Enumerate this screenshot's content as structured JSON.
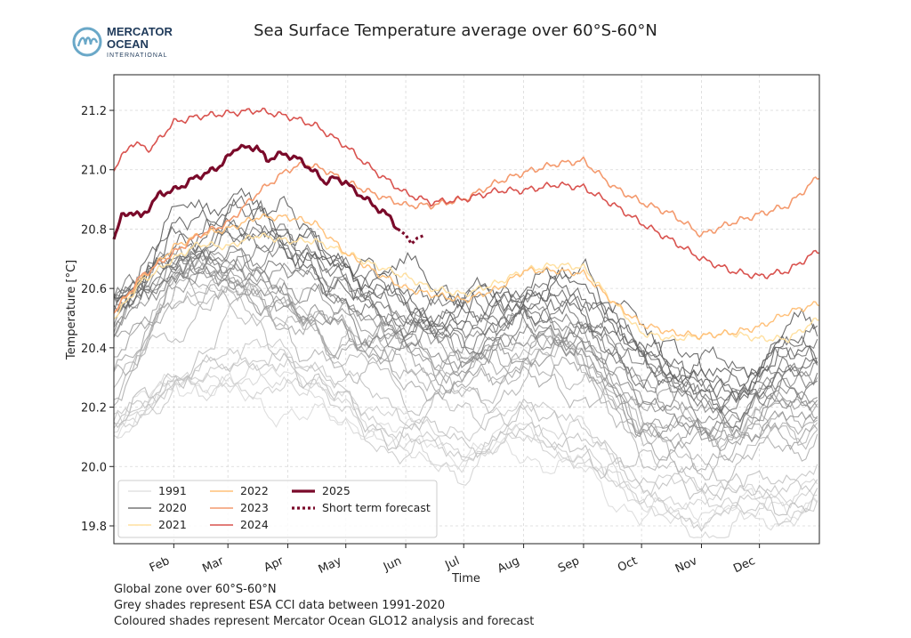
{
  "logo": {
    "line1": "MERCATOR",
    "line2": "OCEAN",
    "line3": "INTERNATIONAL",
    "colors": {
      "blue": "#6aa8c8",
      "navy": "#1f3a5a"
    }
  },
  "footnotes": [
    "Global zone over 60°S-60°N",
    "Grey shades represent ESA CCI data between 1991-2020",
    "Coloured shades represent Mercator Ocean GLO12 analysis and forecast"
  ],
  "chart_data": {
    "type": "line",
    "title": "Sea Surface Temperature average over 60°S-60°N",
    "xlabel": "Time",
    "ylabel": "Temperature [°C]",
    "ylim": [
      19.74,
      21.32
    ],
    "xlim": [
      1,
      366
    ],
    "grid": true,
    "legend_position": "lower-left",
    "x_unit": "day of year",
    "month_ticks": [
      {
        "label": "Feb",
        "day": 32
      },
      {
        "label": "Mar",
        "day": 60
      },
      {
        "label": "Apr",
        "day": 91
      },
      {
        "label": "May",
        "day": 121
      },
      {
        "label": "Jun",
        "day": 152
      },
      {
        "label": "Jul",
        "day": 182
      },
      {
        "label": "Aug",
        "day": 213
      },
      {
        "label": "Sep",
        "day": 244
      },
      {
        "label": "Oct",
        "day": 274
      },
      {
        "label": "Nov",
        "day": 305
      },
      {
        "label": "Dec",
        "day": 335
      }
    ],
    "y_ticks": [
      19.8,
      20.0,
      20.2,
      20.4,
      20.6,
      20.8,
      21.0,
      21.2
    ],
    "grey_climatology": {
      "description_years": "1991-2020",
      "count": 30,
      "color_start": "#dcdcdc",
      "color_end": "#5a5a5a",
      "base_curve": {
        "x": [
          1,
          32,
          60,
          91,
          121,
          152,
          182,
          213,
          244,
          274,
          305,
          335,
          366
        ],
        "y": [
          20.12,
          20.32,
          20.36,
          20.3,
          20.2,
          20.1,
          20.05,
          20.14,
          20.1,
          19.9,
          19.84,
          19.87,
          19.95
        ]
      },
      "start_anomaly": -0.02,
      "end_anomaly": 0.52
    },
    "series": [
      {
        "name": "2021",
        "color": "#ffe0a0",
        "width": 1.4,
        "x": [
          1,
          15,
          32,
          45,
          60,
          75,
          91,
          105,
          121,
          135,
          152,
          165,
          182,
          200,
          213,
          230,
          244,
          260,
          274,
          290,
          305,
          320,
          335,
          350,
          366
        ],
        "y": [
          20.5,
          20.62,
          20.7,
          20.75,
          20.74,
          20.78,
          20.76,
          20.76,
          20.72,
          20.68,
          20.64,
          20.6,
          20.58,
          20.62,
          20.66,
          20.68,
          20.67,
          20.55,
          20.45,
          20.43,
          20.44,
          20.45,
          20.43,
          20.43,
          20.5
        ]
      },
      {
        "name": "2022",
        "color": "#ffc079",
        "width": 1.4,
        "x": [
          1,
          15,
          32,
          45,
          60,
          75,
          91,
          105,
          121,
          135,
          152,
          165,
          182,
          200,
          213,
          230,
          244,
          260,
          274,
          290,
          305,
          320,
          335,
          350,
          366
        ],
        "y": [
          20.52,
          20.63,
          20.74,
          20.78,
          20.8,
          20.84,
          20.84,
          20.82,
          20.72,
          20.66,
          20.6,
          20.58,
          20.56,
          20.6,
          20.66,
          20.66,
          20.65,
          20.55,
          20.48,
          20.45,
          20.44,
          20.45,
          20.47,
          20.52,
          20.55
        ]
      },
      {
        "name": "2023",
        "color": "#f49a6e",
        "width": 1.6,
        "x": [
          1,
          15,
          32,
          45,
          60,
          75,
          91,
          100,
          110,
          121,
          135,
          152,
          165,
          182,
          200,
          213,
          230,
          244,
          260,
          274,
          290,
          305,
          320,
          335,
          350,
          366
        ],
        "y": [
          20.52,
          20.64,
          20.72,
          20.78,
          20.82,
          20.92,
          21.0,
          21.02,
          21.0,
          20.96,
          20.92,
          20.88,
          20.88,
          20.9,
          20.96,
          20.99,
          21.02,
          21.03,
          20.94,
          20.89,
          20.85,
          20.78,
          20.82,
          20.85,
          20.88,
          20.98
        ]
      },
      {
        "name": "2024",
        "color": "#d9534f",
        "width": 1.6,
        "x": [
          1,
          10,
          20,
          32,
          45,
          60,
          75,
          91,
          105,
          121,
          135,
          152,
          165,
          182,
          200,
          213,
          230,
          244,
          260,
          274,
          290,
          305,
          320,
          335,
          350,
          366
        ],
        "y": [
          21.0,
          21.09,
          21.07,
          21.16,
          21.18,
          21.19,
          21.2,
          21.18,
          21.15,
          21.08,
          21.0,
          20.92,
          20.89,
          20.9,
          20.93,
          20.93,
          20.95,
          20.94,
          20.88,
          20.82,
          20.76,
          20.7,
          20.66,
          20.64,
          20.66,
          20.73
        ]
      },
      {
        "name": "2025",
        "color": "#7a0a2a",
        "width": 3.2,
        "x": [
          1,
          5,
          10,
          15,
          20,
          25,
          32,
          40,
          45,
          50,
          55,
          60,
          65,
          70,
          75,
          80,
          85,
          91,
          95,
          100,
          105,
          110,
          115,
          121,
          125,
          130,
          135,
          140,
          145,
          148
        ],
        "y": [
          20.77,
          20.84,
          20.86,
          20.84,
          20.88,
          20.92,
          20.93,
          20.96,
          20.98,
          20.99,
          21.01,
          21.04,
          21.08,
          21.07,
          21.08,
          21.03,
          21.05,
          21.05,
          21.04,
          21.02,
          20.99,
          20.96,
          20.97,
          20.96,
          20.93,
          20.91,
          20.88,
          20.86,
          20.83,
          20.8
        ]
      },
      {
        "name": "Short term forecast",
        "color": "#7a0a2a",
        "width": 3.2,
        "dashed": true,
        "x": [
          148,
          152,
          155,
          158,
          162
        ],
        "y": [
          20.8,
          20.78,
          20.75,
          20.77,
          20.78
        ]
      }
    ],
    "legend": [
      {
        "label": "1991",
        "color": "#dcdcdc",
        "style": "thin"
      },
      {
        "label": "2020",
        "color": "#5a5a5a",
        "style": "thin"
      },
      {
        "label": "2021",
        "color": "#ffe0a0",
        "style": "medium"
      },
      {
        "label": "2022",
        "color": "#ffc079",
        "style": "medium"
      },
      {
        "label": "2023",
        "color": "#f49a6e",
        "style": "medium"
      },
      {
        "label": "2024",
        "color": "#d9534f",
        "style": "medium"
      },
      {
        "label": "2025",
        "color": "#7a0a2a",
        "style": "thick"
      },
      {
        "label": "Short term forecast",
        "color": "#7a0a2a",
        "style": "dashed"
      }
    ]
  }
}
